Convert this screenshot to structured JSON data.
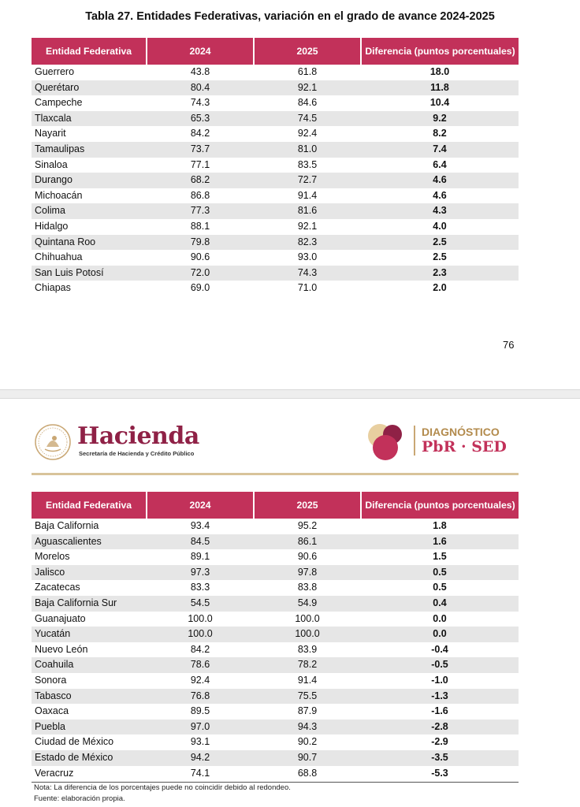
{
  "page1": {
    "title": "Tabla 27. Entidades Federativas, variación en el grado de avance 2024-2025",
    "headers": [
      "Entidad Federativa",
      "2024",
      "2025",
      "Diferencia (puntos porcentuales)"
    ],
    "rows": [
      [
        "Guerrero",
        "43.8",
        "61.8",
        "18.0"
      ],
      [
        "Querétaro",
        "80.4",
        "92.1",
        "11.8"
      ],
      [
        "Campeche",
        "74.3",
        "84.6",
        "10.4"
      ],
      [
        "Tlaxcala",
        "65.3",
        "74.5",
        "9.2"
      ],
      [
        "Nayarit",
        "84.2",
        "92.4",
        "8.2"
      ],
      [
        "Tamaulipas",
        "73.7",
        "81.0",
        "7.4"
      ],
      [
        "Sinaloa",
        "77.1",
        "83.5",
        "6.4"
      ],
      [
        "Durango",
        "68.2",
        "72.7",
        "4.6"
      ],
      [
        "Michoacán",
        "86.8",
        "91.4",
        "4.6"
      ],
      [
        "Colima",
        "77.3",
        "81.6",
        "4.3"
      ],
      [
        "Hidalgo",
        "88.1",
        "92.1",
        "4.0"
      ],
      [
        "Quintana Roo",
        "79.8",
        "82.3",
        "2.5"
      ],
      [
        "Chihuahua",
        "90.6",
        "93.0",
        "2.5"
      ],
      [
        "San Luis Potosí",
        "72.0",
        "74.3",
        "2.3"
      ],
      [
        "Chiapas",
        "69.0",
        "71.0",
        "2.0"
      ]
    ],
    "page_number": "76"
  },
  "page2": {
    "header": {
      "brand": "Hacienda",
      "brand_sub": "Secretaría de Hacienda y Crédito Público",
      "program_title": "DIAGNÓSTICO",
      "program_sub": "PbR · SED"
    },
    "headers": [
      "Entidad Federativa",
      "2024",
      "2025",
      "Diferencia (puntos porcentuales)"
    ],
    "rows": [
      [
        "Baja California",
        "93.4",
        "95.2",
        "1.8"
      ],
      [
        "Aguascalientes",
        "84.5",
        "86.1",
        "1.6"
      ],
      [
        "Morelos",
        "89.1",
        "90.6",
        "1.5"
      ],
      [
        "Jalisco",
        "97.3",
        "97.8",
        "0.5"
      ],
      [
        "Zacatecas",
        "83.3",
        "83.8",
        "0.5"
      ],
      [
        "Baja California Sur",
        "54.5",
        "54.9",
        "0.4"
      ],
      [
        "Guanajuato",
        "100.0",
        "100.0",
        "0.0"
      ],
      [
        "Yucatán",
        "100.0",
        "100.0",
        "0.0"
      ],
      [
        "Nuevo León",
        "84.2",
        "83.9",
        "-0.4"
      ],
      [
        "Coahuila",
        "78.6",
        "78.2",
        "-0.5"
      ],
      [
        "Sonora",
        "92.4",
        "91.4",
        "-1.0"
      ],
      [
        "Tabasco",
        "76.8",
        "75.5",
        "-1.3"
      ],
      [
        "Oaxaca",
        "89.5",
        "87.9",
        "-1.6"
      ],
      [
        "Puebla",
        "97.0",
        "94.3",
        "-2.8"
      ],
      [
        "Ciudad de México",
        "93.1",
        "90.2",
        "-2.9"
      ],
      [
        "Estado de México",
        "94.2",
        "90.7",
        "-3.5"
      ],
      [
        "Veracruz",
        "74.1",
        "68.8",
        "-5.3"
      ]
    ],
    "note": "Nota: La diferencia de los porcentajes puede no coincidir debido al redondeo.",
    "source": "Fuente: elaboración propia."
  },
  "colors": {
    "header_bg": "#c2315a",
    "brand": "#8f2146",
    "gold": "#c9a774"
  }
}
